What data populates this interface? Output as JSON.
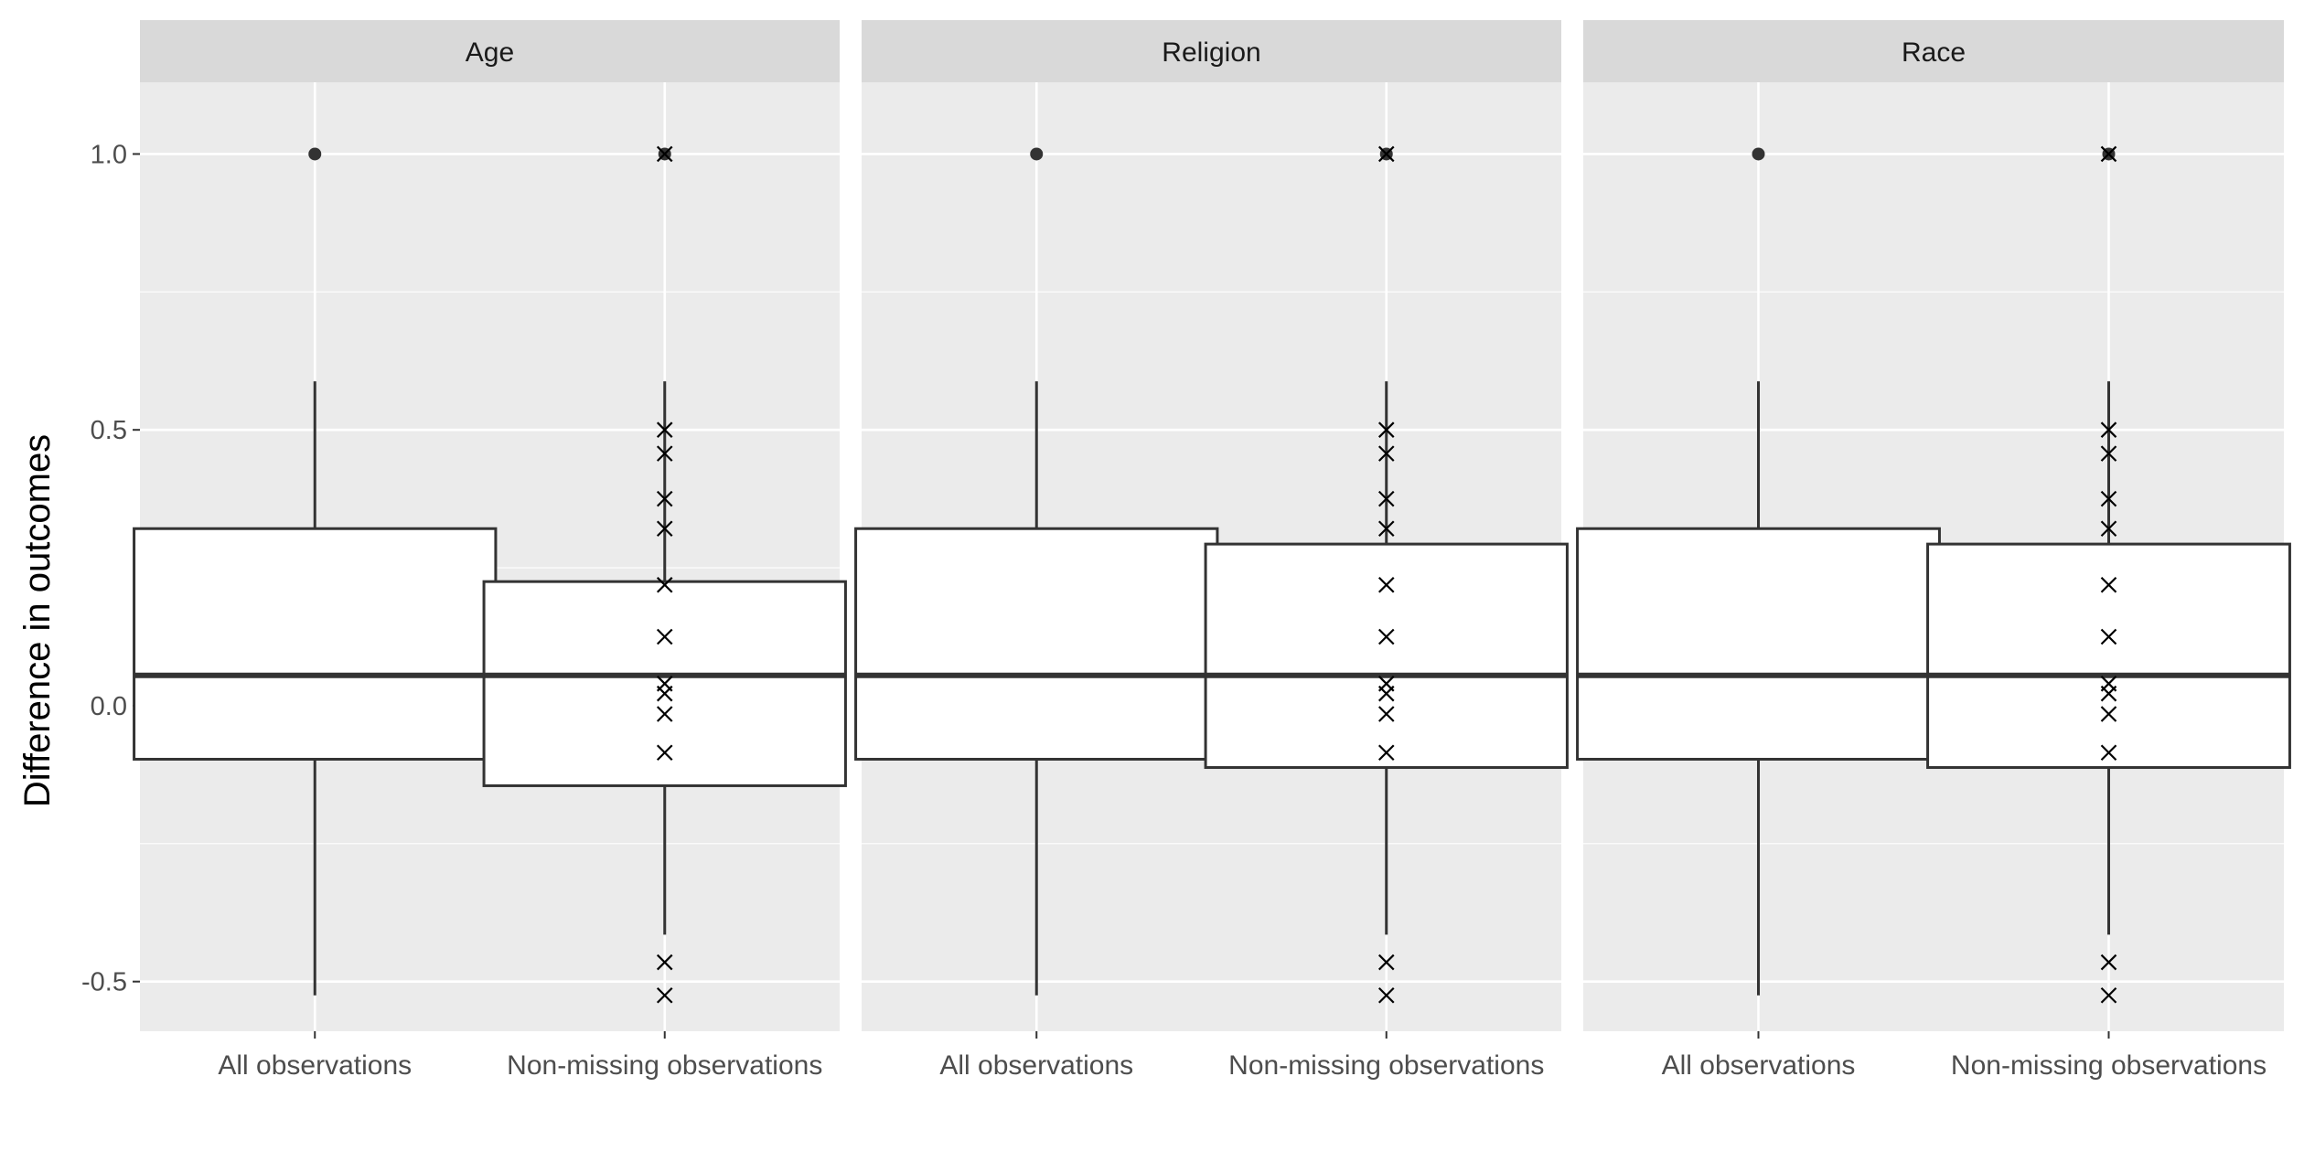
{
  "chart_data": {
    "type": "boxplot",
    "ylabel": "Difference in outcomes",
    "ylim": [
      -0.59,
      1.13
    ],
    "yticks": [
      -0.5,
      0.0,
      0.5,
      1.0
    ],
    "ytick_labels": [
      "-0.5",
      "0.0",
      "0.5",
      "1.0"
    ],
    "grid": true,
    "categories": [
      "All observations",
      "Non-missing observations"
    ],
    "panels": [
      {
        "facet": "Age",
        "boxes": [
          {
            "category": "All observations",
            "lower_whisker": -0.525,
            "q1": -0.097,
            "median": 0.055,
            "q3": 0.321,
            "upper_whisker": 0.588,
            "outliers": [
              1.0
            ]
          },
          {
            "category": "Non-missing observations",
            "lower_whisker": -0.415,
            "q1": -0.145,
            "median": 0.055,
            "q3": 0.225,
            "upper_whisker": 0.588,
            "outliers": [
              1.0
            ]
          }
        ],
        "points": [
          1.0,
          0.5,
          0.457,
          0.375,
          0.321,
          0.219,
          0.125,
          0.04,
          0.022,
          -0.015,
          -0.085,
          -0.465,
          -0.525
        ]
      },
      {
        "facet": "Religion",
        "boxes": [
          {
            "category": "All observations",
            "lower_whisker": -0.525,
            "q1": -0.097,
            "median": 0.055,
            "q3": 0.321,
            "upper_whisker": 0.588,
            "outliers": [
              1.0
            ]
          },
          {
            "category": "Non-missing observations",
            "lower_whisker": -0.415,
            "q1": -0.112,
            "median": 0.055,
            "q3": 0.293,
            "upper_whisker": 0.588,
            "outliers": [
              1.0
            ]
          }
        ],
        "points": [
          1.0,
          0.5,
          0.457,
          0.375,
          0.321,
          0.219,
          0.125,
          0.04,
          0.022,
          -0.015,
          -0.085,
          -0.465,
          -0.525
        ]
      },
      {
        "facet": "Race",
        "boxes": [
          {
            "category": "All observations",
            "lower_whisker": -0.525,
            "q1": -0.097,
            "median": 0.055,
            "q3": 0.321,
            "upper_whisker": 0.588,
            "outliers": [
              1.0
            ]
          },
          {
            "category": "Non-missing observations",
            "lower_whisker": -0.415,
            "q1": -0.112,
            "median": 0.055,
            "q3": 0.293,
            "upper_whisker": 0.588,
            "outliers": [
              1.0
            ]
          }
        ],
        "points": [
          1.0,
          0.5,
          0.457,
          0.375,
          0.321,
          0.219,
          0.125,
          0.04,
          0.022,
          -0.015,
          -0.085,
          -0.465,
          -0.525
        ]
      }
    ],
    "colors": {
      "panel_bg": "#ebebeb",
      "strip_bg": "#d9d9d9",
      "grid": "#ffffff",
      "box_fill": "#ffffff",
      "box_line": "#333333",
      "text": "#4d4d4d",
      "strip_text": "#1a1a1a",
      "title_text": "#000000"
    }
  }
}
